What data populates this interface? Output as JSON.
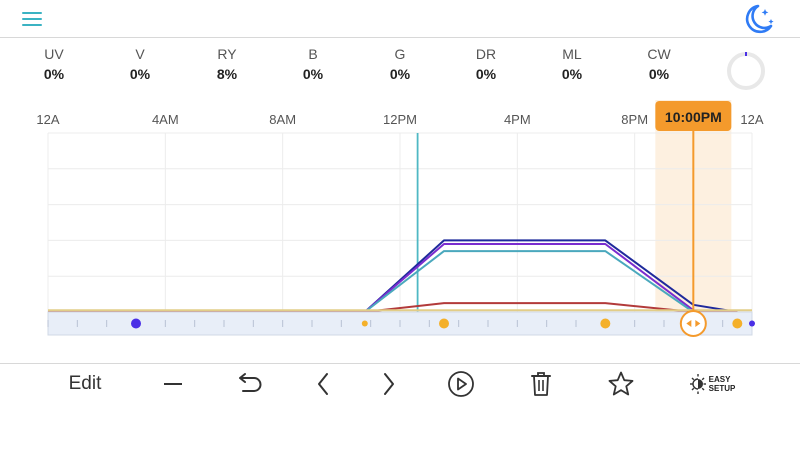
{
  "header": {
    "menu_icon": "hamburger-menu-icon",
    "theme_icon": "moon-stars-icon",
    "menu_color": "#3bb3c3",
    "theme_color": "#2f7bf5"
  },
  "channels": [
    {
      "name": "UV",
      "value": "0%"
    },
    {
      "name": "V",
      "value": "0%"
    },
    {
      "name": "RY",
      "value": "8%"
    },
    {
      "name": "B",
      "value": "0%"
    },
    {
      "name": "G",
      "value": "0%"
    },
    {
      "name": "DR",
      "value": "0%"
    },
    {
      "name": "ML",
      "value": "0%"
    },
    {
      "name": "CW",
      "value": "0%"
    }
  ],
  "chart_data": {
    "type": "line",
    "x_ticks": [
      "12A",
      "4AM",
      "8AM",
      "12PM",
      "4PM",
      "8PM",
      "10:00PM",
      "12A"
    ],
    "x_range_hours": [
      0,
      24
    ],
    "current_time_label": "10:00PM",
    "current_time_hour": 22,
    "now_marker_hour": 12.6,
    "y_range_percent": [
      0,
      100
    ],
    "grid": true,
    "series": [
      {
        "color": "#1f2a9c",
        "points": [
          [
            0,
            0
          ],
          [
            10.8,
            0
          ],
          [
            13.5,
            40
          ],
          [
            19,
            40
          ],
          [
            22,
            4
          ],
          [
            23.5,
            0
          ]
        ]
      },
      {
        "color": "#7a2ccf",
        "points": [
          [
            0,
            0
          ],
          [
            10.8,
            0
          ],
          [
            13.5,
            38
          ],
          [
            19,
            38
          ],
          [
            22,
            1
          ],
          [
            23.5,
            0
          ]
        ]
      },
      {
        "color": "#4aa8bd",
        "points": [
          [
            0,
            0
          ],
          [
            10.8,
            0
          ],
          [
            13.5,
            34
          ],
          [
            19,
            34
          ],
          [
            22,
            0
          ],
          [
            23.5,
            0
          ]
        ]
      },
      {
        "color": "#b23a3a",
        "points": [
          [
            0,
            0
          ],
          [
            10.8,
            0
          ],
          [
            13.5,
            5
          ],
          [
            19,
            5
          ],
          [
            22,
            0
          ],
          [
            23.5,
            0
          ]
        ]
      },
      {
        "color": "#e2cd88",
        "points": [
          [
            0,
            1
          ],
          [
            24,
            1
          ]
        ]
      }
    ],
    "keyframe_dots": [
      {
        "hour": 3,
        "color": "#4a2fe6",
        "size": "large"
      },
      {
        "hour": 10.8,
        "color": "#f4b02a",
        "size": "small"
      },
      {
        "hour": 13.5,
        "color": "#f4b02a",
        "size": "large"
      },
      {
        "hour": 19,
        "color": "#f4b02a",
        "size": "large"
      },
      {
        "hour": 23.5,
        "color": "#f4b02a",
        "size": "large"
      }
    ],
    "accent_color": "#f49a2c"
  },
  "toolbar": {
    "edit_label": "Edit",
    "easy_setup_line1": "EASY",
    "easy_setup_line2": "SETUP",
    "icons": [
      "minus-icon",
      "undo-icon",
      "chevron-left-icon",
      "chevron-right-icon",
      "play-circle-icon",
      "trash-icon",
      "star-icon",
      "sun-icon"
    ]
  }
}
